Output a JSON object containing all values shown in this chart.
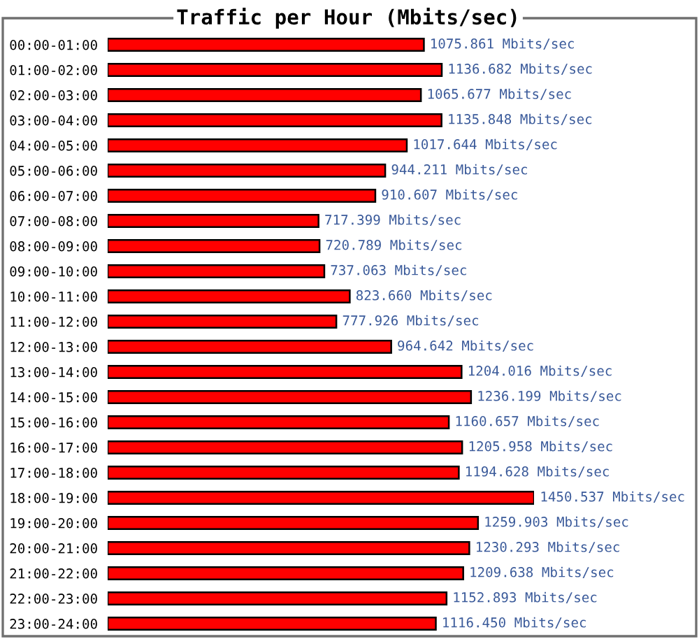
{
  "chart_data": {
    "type": "bar",
    "orientation": "horizontal",
    "title": "Traffic per Hour (Mbits/sec)",
    "tick_labels": "y",
    "color": "#ff0000",
    "categories": [
      "00:00-01:00",
      "01:00-02:00",
      "02:00-03:00",
      "03:00-04:00",
      "04:00-05:00",
      "05:00-06:00",
      "06:00-07:00",
      "07:00-08:00",
      "08:00-09:00",
      "09:00-10:00",
      "10:00-11:00",
      "11:00-12:00",
      "12:00-13:00",
      "13:00-14:00",
      "14:00-15:00",
      "15:00-16:00",
      "16:00-17:00",
      "17:00-18:00",
      "18:00-19:00",
      "19:00-20:00",
      "20:00-21:00",
      "21:00-22:00",
      "22:00-23:00",
      "23:00-24:00"
    ],
    "values": [
      1075.861,
      1136.682,
      1065.677,
      1135.848,
      1017.644,
      944.211,
      910.607,
      717.399,
      720.789,
      737.063,
      823.66,
      777.926,
      964.642,
      1204.016,
      1236.199,
      1160.657,
      1205.958,
      1194.628,
      1450.537,
      1259.903,
      1230.293,
      1209.638,
      1152.893,
      1116.45
    ],
    "value_labels": [
      "1075.861 Mbits/sec",
      "1136.682 Mbits/sec",
      "1065.677 Mbits/sec",
      "1135.848 Mbits/sec",
      "1017.644 Mbits/sec",
      "944.211 Mbits/sec",
      "910.607 Mbits/sec",
      "717.399 Mbits/sec",
      "720.789 Mbits/sec",
      "737.063 Mbits/sec",
      "823.660 Mbits/sec",
      "777.926 Mbits/sec",
      "964.642 Mbits/sec",
      "1204.016 Mbits/sec",
      "1236.199 Mbits/sec",
      "1160.657 Mbits/sec",
      "1205.958 Mbits/sec",
      "1194.628 Mbits/sec",
      "1450.537 Mbits/sec",
      "1259.903 Mbits/sec",
      "1230.293 Mbits/sec",
      "1209.638 Mbits/sec",
      "1152.893 Mbits/sec",
      "1116.450 Mbits/sec"
    ]
  }
}
